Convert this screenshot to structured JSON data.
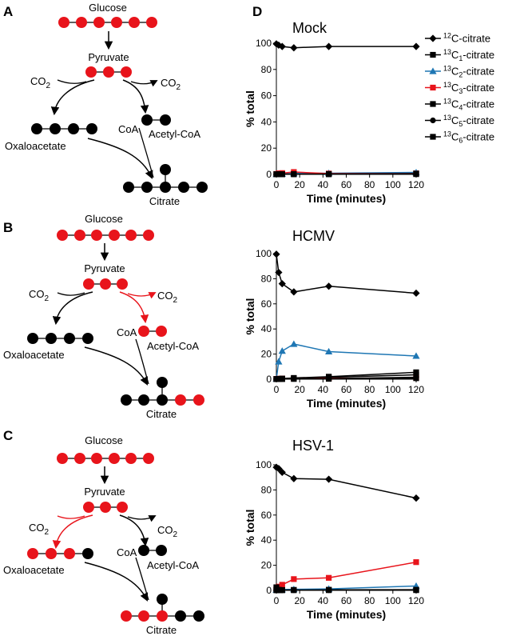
{
  "panels": {
    "A": {
      "label": "A",
      "glucose": "Glucose",
      "pyruvate": "Pyruvate",
      "co2_left": "CO",
      "co2_right": "CO",
      "coa": "CoA",
      "acetylcoa": "Acetyl-CoA",
      "oxaloacetate": "Oxaloacetate",
      "citrate": "Citrate"
    },
    "B": {
      "label": "B",
      "glucose": "Glucose",
      "pyruvate": "Pyruvate",
      "co2_left": "CO",
      "co2_right": "CO",
      "coa": "CoA",
      "acetylcoa": "Acetyl-CoA",
      "oxaloacetate": "Oxaloacetate",
      "citrate": "Citrate"
    },
    "C": {
      "label": "C",
      "glucose": "Glucose",
      "pyruvate": "Pyruvate",
      "co2_left": "CO",
      "co2_right": "CO",
      "coa": "CoA",
      "acetylcoa": "Acetyl-CoA",
      "oxaloacetate": "Oxaloacetate",
      "citrate": "Citrate"
    },
    "D": {
      "label": "D"
    },
    "subscript_2": "2"
  },
  "colors": {
    "red": "#e8141b",
    "black": "#000000",
    "blue": "#1f77b4"
  },
  "legend": [
    {
      "pre": "12",
      "post": "C-citrate",
      "marker": "diamond",
      "color": "#000000"
    },
    {
      "pre": "13",
      "post": "C",
      "sub": "1",
      "tail": "-citrate",
      "marker": "square",
      "color": "#000000"
    },
    {
      "pre": "13",
      "post": "C",
      "sub": "2",
      "tail": "-citrate",
      "marker": "triangle",
      "color": "#1f77b4"
    },
    {
      "pre": "13",
      "post": "C",
      "sub": "3",
      "tail": "-citrate",
      "marker": "square",
      "color": "#e8141b"
    },
    {
      "pre": "13",
      "post": "C",
      "sub": "4",
      "tail": "-citrate",
      "marker": "square",
      "color": "#000000"
    },
    {
      "pre": "13",
      "post": "C",
      "sub": "5",
      "tail": "-citrate",
      "marker": "circle",
      "color": "#000000"
    },
    {
      "pre": "13",
      "post": "C",
      "sub": "6",
      "tail": "-citrate",
      "marker": "square",
      "color": "#000000"
    }
  ],
  "chart_data": [
    {
      "type": "line",
      "title": "Mock",
      "xlabel": "Time (minutes)",
      "ylabel": "% total",
      "xlim": [
        0,
        120
      ],
      "ylim": [
        0,
        100
      ],
      "xticks": [
        0,
        20,
        40,
        60,
        80,
        100,
        120
      ],
      "yticks": [
        0,
        20,
        40,
        60,
        80,
        100
      ],
      "x": [
        0,
        2,
        5,
        15,
        45,
        120
      ],
      "series": [
        {
          "name": "12C-citrate",
          "marker": "diamond",
          "color": "#000000",
          "values": [
            99.5,
            98.5,
            97.5,
            96.5,
            97.5,
            97.5
          ]
        },
        {
          "name": "13C1-citrate",
          "marker": "square",
          "color": "#000000",
          "values": [
            0.3,
            0.3,
            0.3,
            0.5,
            0.6,
            0.8
          ]
        },
        {
          "name": "13C2-citrate",
          "marker": "triangle",
          "color": "#1f77b4",
          "values": [
            0.2,
            0.3,
            0.4,
            0.8,
            0.9,
            1.5
          ]
        },
        {
          "name": "13C3-citrate",
          "marker": "square",
          "color": "#e8141b",
          "values": [
            0.3,
            0.8,
            1.0,
            1.8,
            0.6,
            0.6
          ]
        },
        {
          "name": "13C4-citrate",
          "marker": "square",
          "color": "#000000",
          "values": [
            0.1,
            0.1,
            0.1,
            0.2,
            0.3,
            0.5
          ]
        },
        {
          "name": "13C5-citrate",
          "marker": "circle",
          "color": "#000000",
          "values": [
            0.1,
            0.1,
            0.1,
            0.1,
            0.2,
            0.3
          ]
        },
        {
          "name": "13C6-citrate",
          "marker": "square",
          "color": "#000000",
          "values": [
            0.1,
            0.1,
            0.1,
            0.1,
            0.1,
            0.2
          ]
        }
      ]
    },
    {
      "type": "line",
      "title": "HCMV",
      "xlabel": "Time (minutes)",
      "ylabel": "% total",
      "xlim": [
        0,
        120
      ],
      "ylim": [
        0,
        100
      ],
      "xticks": [
        0,
        20,
        40,
        60,
        80,
        100,
        120
      ],
      "yticks": [
        0,
        20,
        40,
        60,
        80,
        100
      ],
      "x": [
        0,
        2,
        5,
        15,
        45,
        120
      ],
      "series": [
        {
          "name": "12C-citrate",
          "marker": "diamond",
          "color": "#000000",
          "values": [
            99.5,
            85,
            76,
            69.5,
            74,
            68.5
          ]
        },
        {
          "name": "13C1-citrate",
          "marker": "square",
          "color": "#000000",
          "values": [
            0.2,
            0.3,
            0.5,
            0.7,
            1.5,
            3.5
          ]
        },
        {
          "name": "13C2-citrate",
          "marker": "triangle",
          "color": "#1f77b4",
          "values": [
            0.3,
            14,
            22.5,
            28,
            22,
            18.5
          ]
        },
        {
          "name": "13C3-citrate",
          "marker": "square",
          "color": "#e8141b",
          "values": [
            0.2,
            0.4,
            0.5,
            0.6,
            0.7,
            1.0
          ]
        },
        {
          "name": "13C4-citrate",
          "marker": "square",
          "color": "#000000",
          "values": [
            0.1,
            0.3,
            0.5,
            1.0,
            2.0,
            5.5
          ]
        },
        {
          "name": "13C5-citrate",
          "marker": "circle",
          "color": "#000000",
          "values": [
            0.1,
            0.1,
            0.2,
            0.3,
            0.5,
            1.5
          ]
        },
        {
          "name": "13C6-citrate",
          "marker": "square",
          "color": "#000000",
          "values": [
            0.1,
            0.1,
            0.1,
            0.2,
            0.3,
            0.8
          ]
        }
      ]
    },
    {
      "type": "line",
      "title": "HSV-1",
      "xlabel": "Time (minutes)",
      "ylabel": "% total",
      "xlim": [
        0,
        120
      ],
      "ylim": [
        0,
        100
      ],
      "xticks": [
        0,
        20,
        40,
        60,
        80,
        100,
        120
      ],
      "yticks": [
        0,
        20,
        40,
        60,
        80,
        100
      ],
      "x": [
        0,
        2,
        5,
        15,
        45,
        120
      ],
      "series": [
        {
          "name": "12C-citrate",
          "marker": "diamond",
          "color": "#000000",
          "values": [
            98,
            97,
            94,
            89,
            88.5,
            73.5
          ]
        },
        {
          "name": "13C1-citrate",
          "marker": "square",
          "color": "#000000",
          "values": [
            0.3,
            0.3,
            0.3,
            0.4,
            0.5,
            0.6
          ]
        },
        {
          "name": "13C2-citrate",
          "marker": "triangle",
          "color": "#1f77b4",
          "values": [
            0.5,
            0.6,
            0.7,
            0.9,
            1.2,
            3.5
          ]
        },
        {
          "name": "13C3-citrate",
          "marker": "square",
          "color": "#e8141b",
          "values": [
            1.5,
            3,
            4.5,
            9,
            10,
            22.5
          ]
        },
        {
          "name": "13C4-citrate",
          "marker": "square",
          "color": "#000000",
          "values": [
            0.1,
            0.2,
            0.2,
            0.3,
            0.4,
            0.5
          ]
        },
        {
          "name": "13C5-citrate",
          "marker": "circle",
          "color": "#000000",
          "values": [
            0.1,
            0.1,
            0.1,
            0.2,
            0.2,
            0.3
          ]
        },
        {
          "name": "13C6-citrate",
          "marker": "square",
          "color": "#000000",
          "values": [
            2.5,
            0.5,
            0.3,
            0.2,
            0.2,
            0.2
          ]
        }
      ]
    }
  ]
}
